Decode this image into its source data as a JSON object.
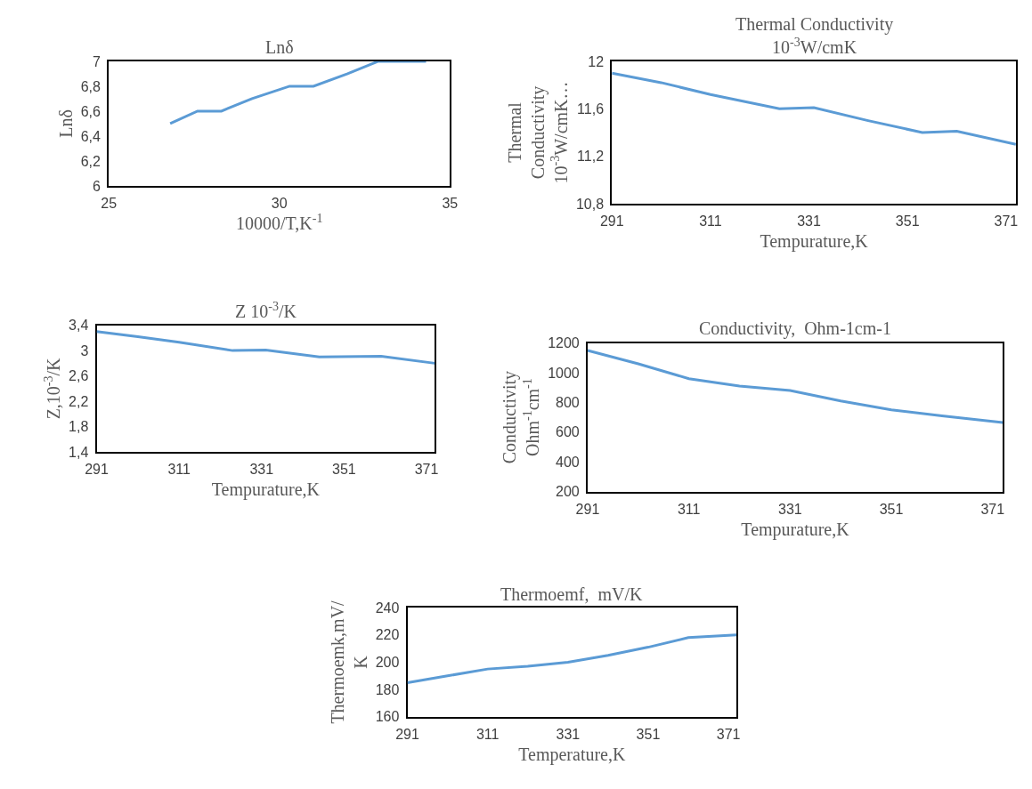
{
  "chart_data": [
    {
      "type": "line",
      "title": "Lnδ",
      "xlabel": "10000/T,K$^{-1}$",
      "ylabel": "Lnδ",
      "x": [
        26.8,
        27.6,
        28.3,
        29.2,
        30.3,
        31.0,
        32.0,
        32.9,
        34.3
      ],
      "series": [
        {
          "color": "#5b9bd5",
          "values": [
            6.5,
            6.6,
            6.6,
            6.7,
            6.8,
            6.8,
            6.9,
            7.0,
            7.0
          ]
        }
      ],
      "xlim": [
        25,
        35
      ],
      "xticks": [
        25,
        30,
        35
      ],
      "ylim": [
        6,
        7
      ],
      "yticks": [
        6,
        {
          "value": 6.2,
          "label": "6,2"
        },
        {
          "value": 6.4,
          "label": "6,4"
        },
        {
          "value": 6.6,
          "label": "6,6"
        },
        {
          "value": 6.8,
          "label": "6,8"
        },
        7
      ]
    },
    {
      "type": "line",
      "title": "Thermal Conductivity\n10$^{-3}$W/cmK",
      "xlabel": "Tempurature,K",
      "ylabel": "Thermal\nConductivity\n10$^{-3}$W/cmK…",
      "x": [
        291,
        301,
        311,
        325,
        332,
        343,
        354,
        361,
        373
      ],
      "series": [
        {
          "color": "#5b9bd5",
          "values": [
            11.9,
            11.82,
            11.72,
            11.6,
            11.61,
            11.5,
            11.4,
            11.41,
            11.3
          ]
        }
      ],
      "xlim": [
        291,
        373
      ],
      "xticks": [
        291,
        311,
        331,
        351,
        371
      ],
      "ylim": [
        10.8,
        12
      ],
      "yticks": [
        {
          "value": 10.8,
          "label": "10,8"
        },
        {
          "value": 11.2,
          "label": "11,2"
        },
        {
          "value": 11.6,
          "label": "11,6"
        },
        12
      ]
    },
    {
      "type": "line",
      "title": "Z 10$^{-3}$/K",
      "xlabel": "Tempurature,K",
      "ylabel": "Z,10$^{-3}$/K",
      "x": [
        291,
        301,
        311,
        324,
        332,
        345,
        360,
        373
      ],
      "series": [
        {
          "color": "#5b9bd5",
          "values": [
            3.3,
            3.22,
            3.13,
            3.0,
            3.01,
            2.9,
            2.91,
            2.8
          ]
        }
      ],
      "xlim": [
        291,
        373
      ],
      "xticks": [
        291,
        311,
        331,
        351,
        371
      ],
      "ylim": [
        1.4,
        3.4
      ],
      "yticks": [
        {
          "value": 1.4,
          "label": "1,4"
        },
        {
          "value": 1.8,
          "label": "1,8"
        },
        {
          "value": 2.2,
          "label": "2,2"
        },
        {
          "value": 2.6,
          "label": "2,6"
        },
        3,
        {
          "value": 3.4,
          "label": "3,4"
        }
      ]
    },
    {
      "type": "line",
      "title": "Conductivity,  Ohm-1cm-1",
      "xlabel": "Tempurature,K",
      "ylabel": "Conductivity\nOhm$^{-1}$cm$^{-1}$",
      "x": [
        291,
        301,
        311,
        321,
        331,
        341,
        351,
        361,
        373
      ],
      "series": [
        {
          "color": "#5b9bd5",
          "values": [
            1150,
            1060,
            960,
            910,
            880,
            810,
            750,
            710,
            665
          ]
        }
      ],
      "xlim": [
        291,
        373
      ],
      "xticks": [
        291,
        311,
        331,
        351,
        371
      ],
      "ylim": [
        200,
        1200
      ],
      "yticks": [
        200,
        400,
        600,
        800,
        1000,
        1200
      ]
    },
    {
      "type": "line",
      "title": "Thermoemf,  mV/K",
      "xlabel": "Temperature,K",
      "ylabel": "Thermoemk,mV/\nK",
      "x": [
        291,
        301,
        311,
        321,
        331,
        341,
        351,
        361,
        373
      ],
      "series": [
        {
          "color": "#5b9bd5",
          "values": [
            185,
            190,
            195,
            197,
            200,
            205,
            211,
            218,
            220
          ]
        }
      ],
      "xlim": [
        291,
        373
      ],
      "xticks": [
        291,
        311,
        331,
        351,
        371
      ],
      "ylim": [
        160,
        240
      ],
      "yticks": [
        160,
        180,
        200,
        220,
        240
      ]
    }
  ]
}
